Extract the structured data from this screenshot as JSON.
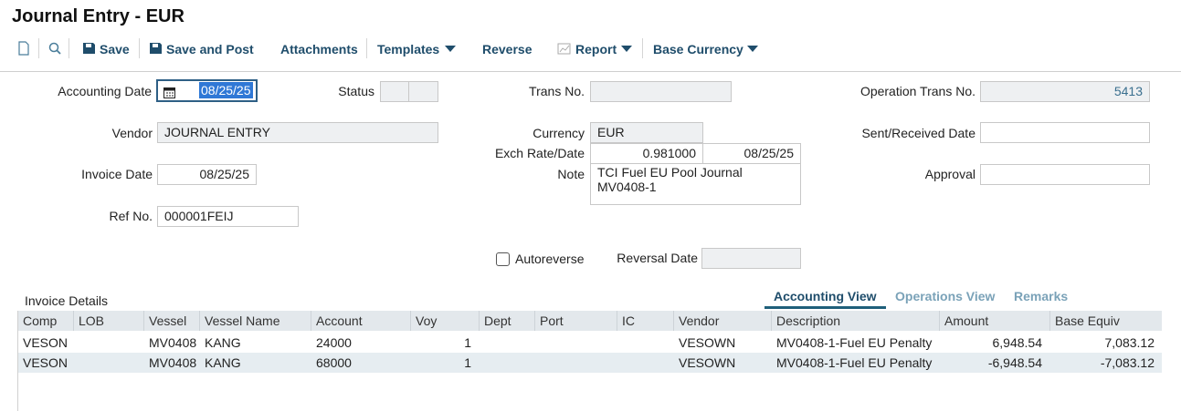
{
  "header": {
    "title": "Journal Entry - EUR"
  },
  "toolbar": {
    "buttons": [
      "Save",
      "Save and Post",
      "Attachments",
      "Templates",
      "Reverse",
      "Report",
      "Base Currency"
    ]
  },
  "form": {
    "accounting_date": {
      "label": "Accounting Date",
      "value": "08/25/25"
    },
    "status": {
      "label": "Status"
    },
    "trans_no": {
      "label": "Trans No."
    },
    "operation_trans_no": {
      "label": "Operation Trans No.",
      "value": "5413"
    },
    "vendor": {
      "label": "Vendor",
      "value": "JOURNAL ENTRY"
    },
    "currency": {
      "label": "Currency",
      "value": "EUR"
    },
    "sent_received_date": {
      "label": "Sent/Received Date"
    },
    "exch_rate_date": {
      "label": "Exch Rate/Date",
      "rate": "0.981000",
      "date": "08/25/25"
    },
    "invoice_date": {
      "label": "Invoice Date",
      "value": "08/25/25"
    },
    "note": {
      "label": "Note",
      "value": "TCI Fuel EU Pool Journal MV0408-1"
    },
    "approval": {
      "label": "Approval"
    },
    "ref_no": {
      "label": "Ref No.",
      "value": "000001FEIJ"
    },
    "autoreverse": {
      "label": "Autoreverse",
      "checked": false
    },
    "reversal_date": {
      "label": "Reversal Date"
    }
  },
  "invoice_details": {
    "title": "Invoice Details",
    "tabs": [
      "Accounting View",
      "Operations View",
      "Remarks"
    ],
    "active_tab": 0,
    "columns": [
      "Comp",
      "LOB",
      "Vessel",
      "Vessel Name",
      "Account",
      "Voy",
      "Dept",
      "Port",
      "IC",
      "Vendor",
      "Description",
      "Amount",
      "Base Equiv"
    ],
    "rows": [
      [
        "VESON",
        null,
        "MV0408",
        "KANG",
        "24000",
        "1",
        null,
        null,
        null,
        "VESOWN",
        "MV0408-1-Fuel EU Penalty",
        "6,948.54",
        "7,083.12"
      ],
      [
        "VESON",
        null,
        "MV0408",
        "KANG",
        "68000",
        "1",
        null,
        null,
        null,
        "VESOWN",
        "MV0408-1-Fuel EU Penalty",
        "-6,948.54",
        "-7,083.12"
      ]
    ]
  }
}
